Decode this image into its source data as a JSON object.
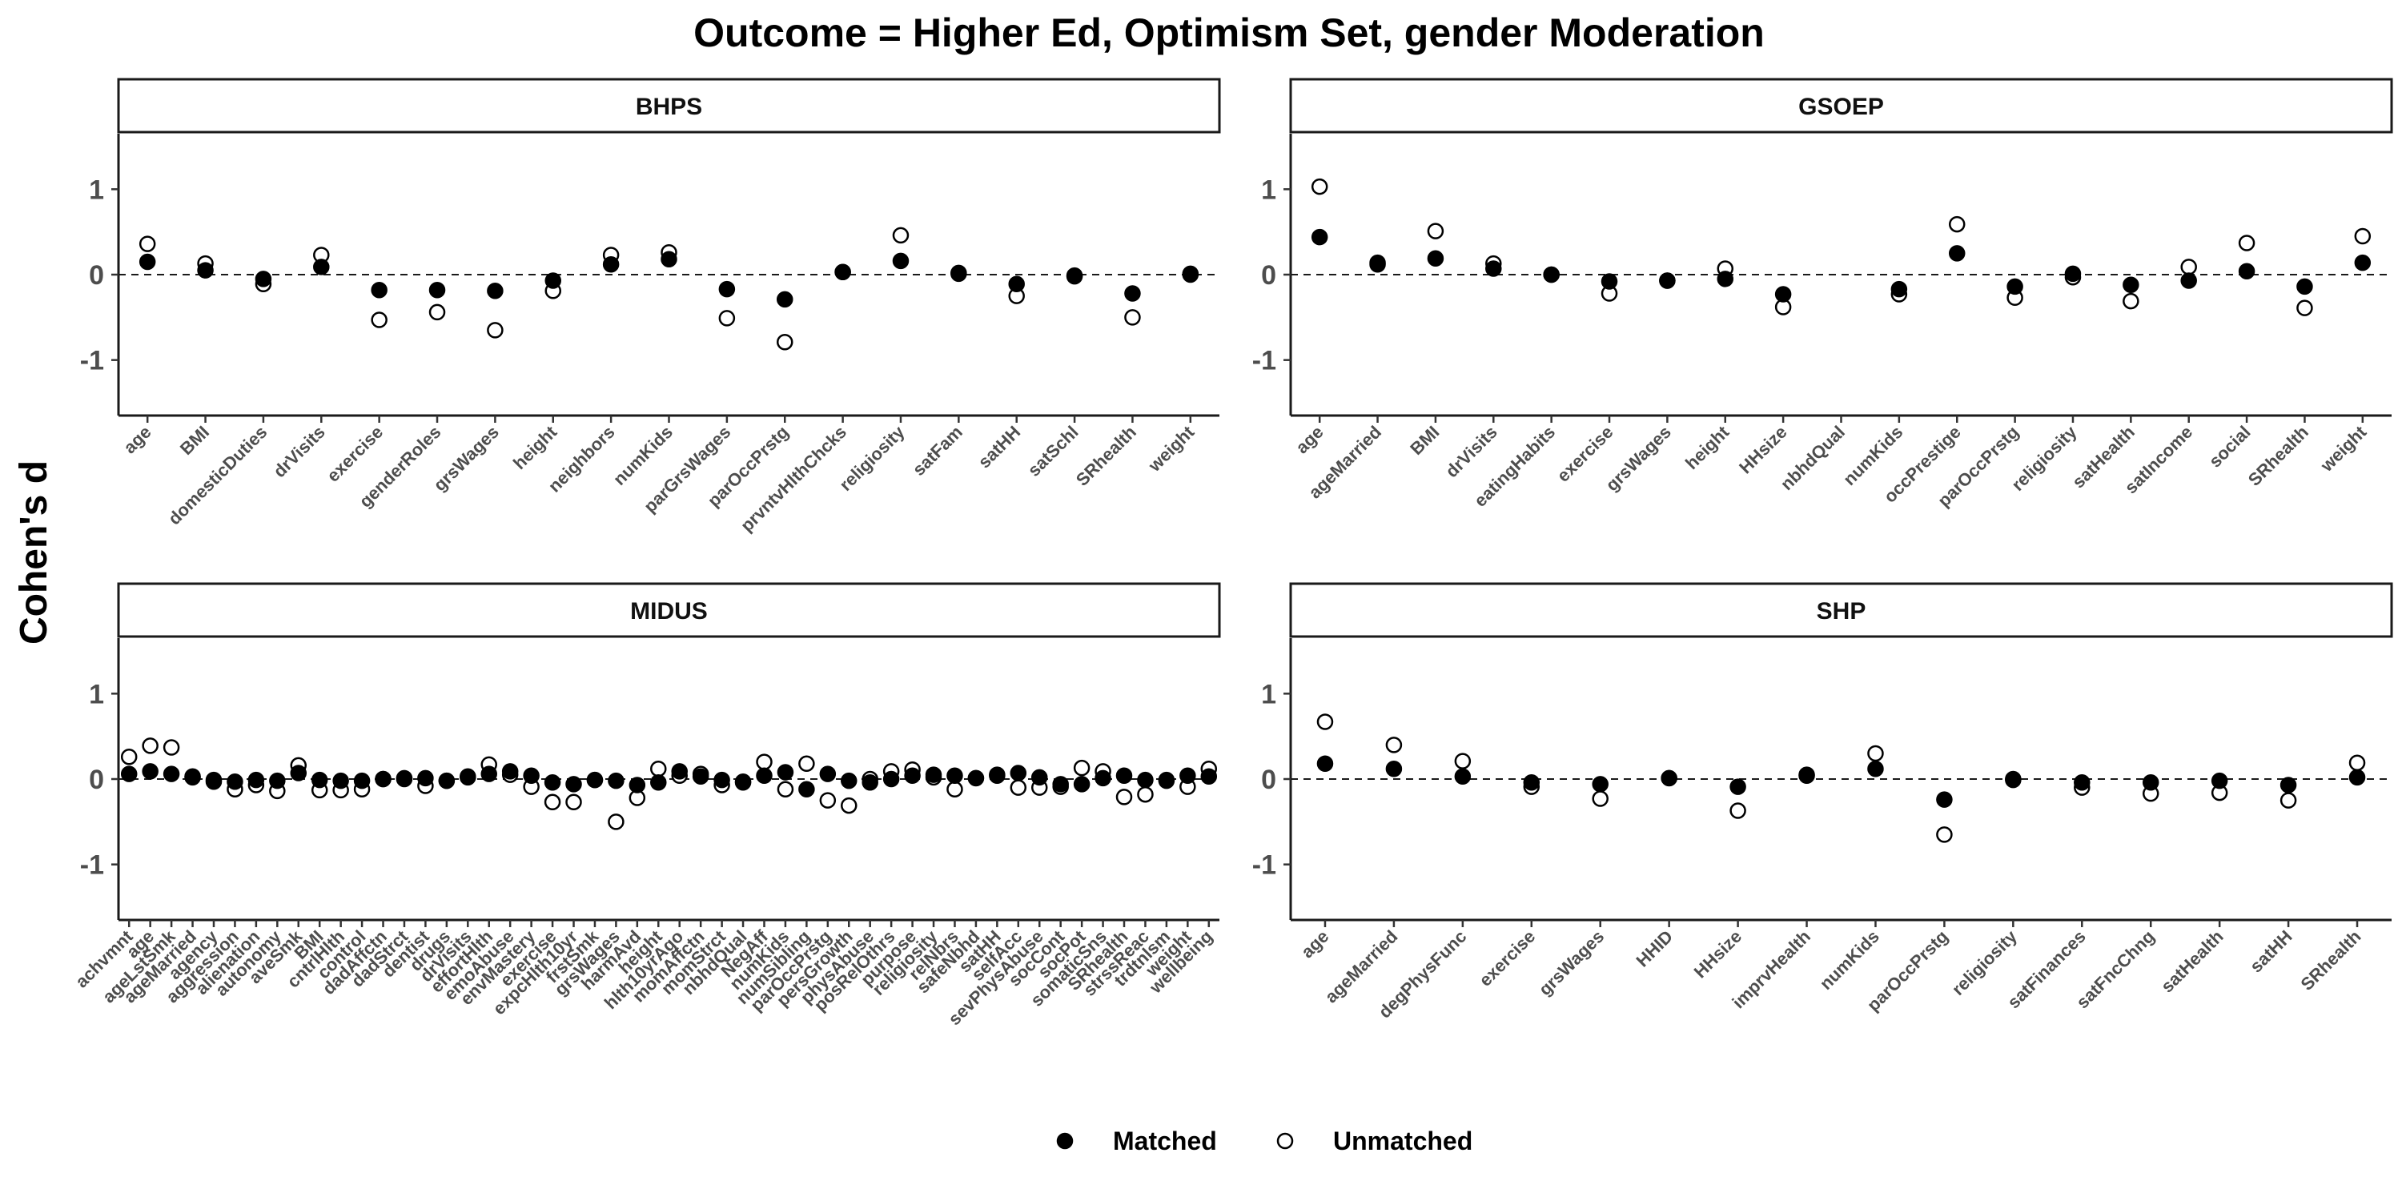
{
  "chart_data": {
    "type": "scatter",
    "title": "Outcome = Higher Ed, Optimism Set, gender Moderation",
    "ylabel": "Cohen's d",
    "ylim": [
      -1.65,
      1.65
    ],
    "yticks": [
      -1,
      0,
      1
    ],
    "reference_line": 0,
    "legend": {
      "position": "bottom",
      "entries": [
        {
          "name": "Matched",
          "marker": "filled-circle"
        },
        {
          "name": "Unmatched",
          "marker": "open-circle"
        }
      ]
    },
    "panels": [
      {
        "name": "BHPS",
        "categories": [
          "age",
          "BMI",
          "domesticDuties",
          "drVisits",
          "exercise",
          "genderRoles",
          "grsWages",
          "height",
          "neighbors",
          "numKids",
          "parGrsWages",
          "parOccPrstg",
          "prvntvHlthChcks",
          "religiosity",
          "satFam",
          "satHH",
          "satSchl",
          "SRhealth",
          "weight"
        ],
        "series": [
          {
            "name": "Matched",
            "values": [
              0.15,
              0.05,
              -0.05,
              0.09,
              -0.18,
              -0.18,
              -0.19,
              -0.07,
              0.12,
              0.18,
              -0.17,
              -0.29,
              0.03,
              0.16,
              0.02,
              -0.11,
              -0.01,
              -0.22,
              0.0
            ]
          },
          {
            "name": "Unmatched",
            "values": [
              0.36,
              0.13,
              -0.11,
              0.23,
              -0.53,
              -0.44,
              -0.65,
              -0.19,
              0.23,
              0.26,
              -0.51,
              -0.79,
              0.03,
              0.46,
              0.01,
              -0.25,
              -0.02,
              -0.5,
              0.01
            ]
          }
        ]
      },
      {
        "name": "GSOEP",
        "categories": [
          "age",
          "ageMarried",
          "BMI",
          "drVisits",
          "eatingHabits",
          "exercise",
          "grsWages",
          "height",
          "HHsize",
          "nbhdQual",
          "numKids",
          "occPrestige",
          "parOccPrstg",
          "religiosity",
          "satHealth",
          "satIncome",
          "social",
          "SRhealth",
          "weight"
        ],
        "series": [
          {
            "name": "Matched",
            "values": [
              0.44,
              0.14,
              0.19,
              0.07,
              0.0,
              -0.08,
              -0.07,
              -0.05,
              -0.23,
              null,
              -0.17,
              0.25,
              -0.14,
              0.01,
              -0.12,
              -0.07,
              0.04,
              -0.14,
              0.14
            ]
          },
          {
            "name": "Unmatched",
            "values": [
              1.03,
              0.12,
              0.51,
              0.13,
              0.0,
              -0.22,
              -0.07,
              0.07,
              -0.38,
              null,
              -0.23,
              0.59,
              -0.27,
              -0.03,
              -0.31,
              0.09,
              0.37,
              -0.39,
              0.45
            ]
          }
        ]
      },
      {
        "name": "MIDUS",
        "categories": [
          "achvmnt",
          "age",
          "ageLstSmk",
          "ageMarried",
          "agency",
          "aggression",
          "alienation",
          "autonomy",
          "aveSmk",
          "BMI",
          "cntrlHlth",
          "control",
          "dadAffctn",
          "dadStrct",
          "dentist",
          "drugs",
          "drVisits",
          "effortHlth",
          "emoAbuse",
          "envMastery",
          "exercise",
          "expcHlth10yr",
          "frstSmk",
          "grsWages",
          "harmAvd",
          "height",
          "hlth10yrAgo",
          "momAffctn",
          "momStrct",
          "nbhdQual",
          "NegAff",
          "numKids",
          "numSibling",
          "parOccPrstg",
          "persGrowth",
          "physAbuse",
          "posRelOthrs",
          "purpose",
          "religiosity",
          "relNbrs",
          "safeNbhd",
          "satHH",
          "selfAcc",
          "sevPhysAbuse",
          "socCont",
          "socPot",
          "somaticSns",
          "SRhealth",
          "strssReac",
          "trdtnlsm",
          "weight",
          "wellbeing"
        ],
        "series": [
          {
            "name": "Matched",
            "values": [
              0.06,
              0.09,
              0.06,
              0.02,
              -0.01,
              -0.03,
              -0.01,
              -0.02,
              0.07,
              -0.01,
              -0.02,
              -0.02,
              0.0,
              0.0,
              0.01,
              -0.02,
              0.02,
              0.06,
              0.09,
              0.04,
              -0.04,
              -0.06,
              -0.01,
              -0.02,
              -0.07,
              -0.04,
              0.09,
              0.03,
              -0.01,
              -0.03,
              0.04,
              0.08,
              -0.12,
              0.06,
              -0.02,
              -0.04,
              0.0,
              0.04,
              0.05,
              0.04,
              0.01,
              0.05,
              0.07,
              0.02,
              -0.06,
              -0.06,
              0.01,
              0.04,
              -0.01,
              -0.01,
              0.04,
              0.03
            ]
          },
          {
            "name": "Unmatched",
            "values": [
              0.26,
              0.39,
              0.37,
              0.03,
              -0.03,
              -0.12,
              -0.07,
              -0.14,
              0.16,
              -0.13,
              -0.13,
              -0.12,
              0.0,
              0.01,
              -0.08,
              -0.02,
              0.03,
              0.17,
              0.05,
              -0.09,
              -0.27,
              -0.27,
              -0.01,
              -0.5,
              -0.22,
              0.12,
              0.04,
              0.06,
              -0.07,
              -0.04,
              0.2,
              -0.12,
              0.18,
              -0.25,
              -0.31,
              0.0,
              0.09,
              0.11,
              0.02,
              -0.12,
              0.01,
              0.04,
              -0.1,
              -0.1,
              -0.09,
              0.13,
              0.09,
              -0.21,
              -0.18,
              -0.02,
              -0.09,
              0.12
            ]
          }
        ]
      },
      {
        "name": "SHP",
        "categories": [
          "age",
          "ageMarried",
          "degPhysFunc",
          "exercise",
          "grsWages",
          "HHID",
          "HHsize",
          "imprvHealth",
          "numKids",
          "parOccPrstg",
          "religiosity",
          "satFinances",
          "satFncChng",
          "satHealth",
          "satHH",
          "SRhealth"
        ],
        "series": [
          {
            "name": "Matched",
            "values": [
              0.18,
              0.12,
              0.03,
              -0.04,
              -0.06,
              0.01,
              -0.09,
              0.05,
              0.12,
              -0.24,
              0.0,
              -0.04,
              -0.04,
              -0.02,
              -0.07,
              0.02
            ]
          },
          {
            "name": "Unmatched",
            "values": [
              0.67,
              0.4,
              0.21,
              -0.09,
              -0.23,
              0.01,
              -0.37,
              0.04,
              0.3,
              -0.65,
              -0.01,
              -0.1,
              -0.17,
              -0.16,
              -0.25,
              0.19
            ]
          }
        ]
      }
    ]
  }
}
